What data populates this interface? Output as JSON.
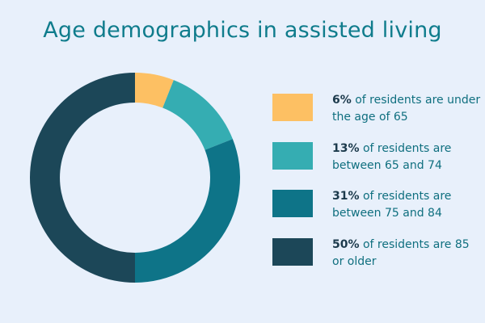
{
  "colors": {
    "background": "#e8f0fb",
    "title": "#0f7c8c",
    "text": "#0f6f7f",
    "percent": "#1c3a4c"
  },
  "chart_data": {
    "type": "pie",
    "variant": "donut",
    "title": "Age demographics in assisted living",
    "categories": [
      "under the age of 65",
      "between 65 and 74",
      "between 75 and 84",
      "85 or older"
    ],
    "values": [
      6,
      13,
      31,
      50
    ],
    "unit": "%",
    "colors": [
      "#fdc063",
      "#35adb2",
      "#0e7488",
      "#1c4758"
    ],
    "legend_position": "right",
    "legend": [
      {
        "percent": "6%",
        "text": " of residents are under the age of 65"
      },
      {
        "percent": "13%",
        "text": " of residents are between 65 and 74"
      },
      {
        "percent": "31%",
        "text": " of residents are between 75 and 84"
      },
      {
        "percent": "50%",
        "text": " of residents are 85 or older"
      }
    ]
  }
}
